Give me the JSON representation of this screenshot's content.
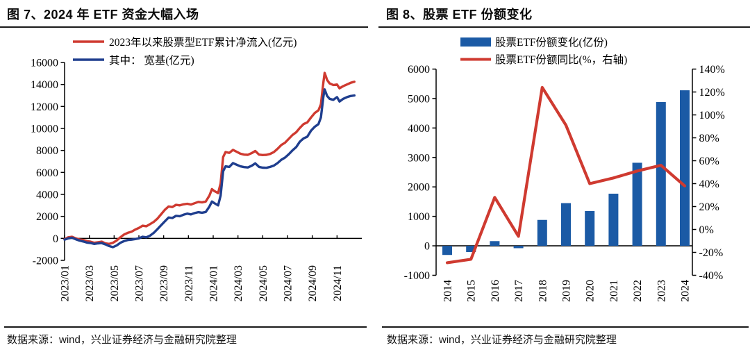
{
  "colors": {
    "red_line": "#cf3a30",
    "navy_line": "#1f3e8e",
    "bar_blue": "#1b5aa5",
    "axis_black": "#000000",
    "rule_dark": "#1a1a1a"
  },
  "left_panel": {
    "title": "图 7、2024 年 ETF 资金大幅入场",
    "source": "数据来源：wind，兴业证券经济与金融研究院整理"
  },
  "right_panel": {
    "title": "图 8、股票 ETF 份额变化",
    "source": "数据来源：wind，兴业证券经济与金融研究院整理"
  },
  "chart_data": [
    {
      "id": "fig7",
      "type": "line",
      "title": "图 7、2024 年 ETF 资金大幅入场",
      "xlabel": "",
      "ylabel": "",
      "unit": "亿元",
      "ylim": [
        -2000,
        16000
      ],
      "ytick_step": 2000,
      "yticks": [
        -2000,
        0,
        2000,
        4000,
        6000,
        8000,
        10000,
        12000,
        14000,
        16000
      ],
      "x_month_span": 24,
      "xtick_labels": [
        "2023/01",
        "2023/03",
        "2023/05",
        "2023/07",
        "2023/09",
        "2023/11",
        "2024/01",
        "2024/03",
        "2024/05",
        "2024/07",
        "2024/09",
        "2024/11"
      ],
      "grid": false,
      "legend_position": "top-inside",
      "series": [
        {
          "name": "2023年以来股票型ETF累计净流入(亿元)",
          "color": "#cf3a30",
          "points": [
            [
              0,
              -80
            ],
            [
              0.3,
              100
            ],
            [
              0.6,
              150
            ],
            [
              0.9,
              0
            ],
            [
              1.2,
              -100
            ],
            [
              1.5,
              -150
            ],
            [
              1.8,
              -250
            ],
            [
              2.1,
              -300
            ],
            [
              2.4,
              -400
            ],
            [
              2.7,
              -350
            ],
            [
              3,
              -300
            ],
            [
              3.3,
              -450
            ],
            [
              3.6,
              -500
            ],
            [
              3.9,
              -400
            ],
            [
              4.2,
              -200
            ],
            [
              4.5,
              100
            ],
            [
              4.8,
              350
            ],
            [
              5.1,
              500
            ],
            [
              5.4,
              600
            ],
            [
              5.7,
              800
            ],
            [
              6,
              950
            ],
            [
              6.3,
              1150
            ],
            [
              6.6,
              1100
            ],
            [
              6.9,
              1300
            ],
            [
              7.2,
              1500
            ],
            [
              7.5,
              1800
            ],
            [
              7.8,
              2200
            ],
            [
              8.1,
              2600
            ],
            [
              8.4,
              2900
            ],
            [
              8.7,
              2850
            ],
            [
              9,
              3050
            ],
            [
              9.3,
              3000
            ],
            [
              9.6,
              3100
            ],
            [
              9.9,
              3150
            ],
            [
              10.2,
              3080
            ],
            [
              10.5,
              3200
            ],
            [
              10.8,
              3320
            ],
            [
              11.1,
              3280
            ],
            [
              11.4,
              3350
            ],
            [
              11.7,
              3900
            ],
            [
              11.9,
              4480
            ],
            [
              12.1,
              4300
            ],
            [
              12.4,
              4120
            ],
            [
              12.6,
              5000
            ],
            [
              12.8,
              7400
            ],
            [
              13,
              7850
            ],
            [
              13.3,
              7780
            ],
            [
              13.6,
              8050
            ],
            [
              13.9,
              7880
            ],
            [
              14.2,
              7700
            ],
            [
              14.5,
              7620
            ],
            [
              14.8,
              7600
            ],
            [
              15.1,
              7750
            ],
            [
              15.4,
              7950
            ],
            [
              15.7,
              7620
            ],
            [
              16,
              7580
            ],
            [
              16.3,
              7600
            ],
            [
              16.6,
              7680
            ],
            [
              16.9,
              7850
            ],
            [
              17.2,
              8150
            ],
            [
              17.5,
              8500
            ],
            [
              17.8,
              8700
            ],
            [
              18.1,
              9050
            ],
            [
              18.4,
              9400
            ],
            [
              18.7,
              9650
            ],
            [
              19,
              10050
            ],
            [
              19.3,
              10400
            ],
            [
              19.6,
              10550
            ],
            [
              19.9,
              11000
            ],
            [
              20.2,
              11400
            ],
            [
              20.5,
              11650
            ],
            [
              20.7,
              12200
            ],
            [
              20.9,
              14200
            ],
            [
              21,
              15050
            ],
            [
              21.2,
              14400
            ],
            [
              21.4,
              14100
            ],
            [
              21.7,
              13950
            ],
            [
              22,
              14000
            ],
            [
              22.2,
              13650
            ],
            [
              22.5,
              13850
            ],
            [
              22.8,
              14000
            ],
            [
              23.1,
              14150
            ],
            [
              23.4,
              14250
            ]
          ]
        },
        {
          "name": "其中： 宽基(亿元)",
          "color": "#1f3e8e",
          "points": [
            [
              0,
              -120
            ],
            [
              0.3,
              0
            ],
            [
              0.6,
              60
            ],
            [
              0.9,
              -80
            ],
            [
              1.2,
              -200
            ],
            [
              1.5,
              -280
            ],
            [
              1.8,
              -380
            ],
            [
              2.1,
              -420
            ],
            [
              2.4,
              -500
            ],
            [
              2.7,
              -450
            ],
            [
              3,
              -430
            ],
            [
              3.3,
              -550
            ],
            [
              3.6,
              -700
            ],
            [
              3.9,
              -800
            ],
            [
              4.2,
              -650
            ],
            [
              4.5,
              -400
            ],
            [
              4.8,
              -250
            ],
            [
              5.1,
              -150
            ],
            [
              5.4,
              -120
            ],
            [
              5.7,
              -60
            ],
            [
              6,
              0
            ],
            [
              6.3,
              150
            ],
            [
              6.6,
              100
            ],
            [
              6.9,
              250
            ],
            [
              7.2,
              500
            ],
            [
              7.5,
              850
            ],
            [
              7.8,
              1200
            ],
            [
              8.1,
              1550
            ],
            [
              8.4,
              1900
            ],
            [
              8.7,
              1850
            ],
            [
              9,
              2050
            ],
            [
              9.3,
              2020
            ],
            [
              9.6,
              2150
            ],
            [
              9.9,
              2250
            ],
            [
              10.2,
              2180
            ],
            [
              10.5,
              2300
            ],
            [
              10.8,
              2380
            ],
            [
              11.1,
              2330
            ],
            [
              11.4,
              2400
            ],
            [
              11.7,
              2900
            ],
            [
              11.9,
              3350
            ],
            [
              12.1,
              3200
            ],
            [
              12.4,
              3000
            ],
            [
              12.6,
              3900
            ],
            [
              12.8,
              6100
            ],
            [
              13,
              6550
            ],
            [
              13.3,
              6500
            ],
            [
              13.6,
              6850
            ],
            [
              13.9,
              6700
            ],
            [
              14.2,
              6550
            ],
            [
              14.5,
              6480
            ],
            [
              14.8,
              6450
            ],
            [
              15.1,
              6600
            ],
            [
              15.4,
              6820
            ],
            [
              15.7,
              6500
            ],
            [
              16,
              6430
            ],
            [
              16.3,
              6420
            ],
            [
              16.6,
              6500
            ],
            [
              16.9,
              6620
            ],
            [
              17.2,
              6850
            ],
            [
              17.5,
              7150
            ],
            [
              17.8,
              7350
            ],
            [
              18.1,
              7650
            ],
            [
              18.4,
              8000
            ],
            [
              18.7,
              8300
            ],
            [
              19,
              8800
            ],
            [
              19.3,
              9100
            ],
            [
              19.6,
              9250
            ],
            [
              19.9,
              9800
            ],
            [
              20.2,
              10150
            ],
            [
              20.5,
              10400
            ],
            [
              20.7,
              11000
            ],
            [
              20.9,
              12900
            ],
            [
              21,
              13550
            ],
            [
              21.2,
              12950
            ],
            [
              21.4,
              12700
            ],
            [
              21.7,
              12600
            ],
            [
              22,
              12850
            ],
            [
              22.2,
              12450
            ],
            [
              22.5,
              12700
            ],
            [
              22.8,
              12850
            ],
            [
              23.1,
              12950
            ],
            [
              23.4,
              13000
            ]
          ]
        }
      ]
    },
    {
      "id": "fig8",
      "type": "bar+line",
      "title": "图 8、股票 ETF 份额变化",
      "categories": [
        "2014",
        "2015",
        "2016",
        "2017",
        "2018",
        "2019",
        "2020",
        "2021",
        "2022",
        "2023",
        "2024"
      ],
      "bar_series": {
        "name": "股票ETF份额变化(亿份)",
        "color": "#1b5aa5",
        "axis": "left",
        "values": [
          -310,
          -210,
          160,
          -80,
          880,
          1450,
          1180,
          1770,
          2820,
          4880,
          5280
        ]
      },
      "line_series": {
        "name": "股票ETF份额同比(%，右轴)",
        "color": "#cf3a30",
        "axis": "right",
        "values": [
          -29,
          -26,
          28,
          -6,
          124,
          91,
          40,
          45,
          51,
          56,
          38
        ]
      },
      "left_ylim": [
        -1000,
        6000
      ],
      "left_ytick_step": 1000,
      "left_yticks": [
        -1000,
        0,
        1000,
        2000,
        3000,
        4000,
        5000,
        6000
      ],
      "right_ylim": [
        -40,
        140
      ],
      "right_ytick_step": 20,
      "right_tick_suffix": "%",
      "right_ytick_labels": [
        "-40%",
        "-20%",
        "0%",
        "20%",
        "40%",
        "60%",
        "80%",
        "100%",
        "120%",
        "140%"
      ],
      "grid": false,
      "legend_position": "top-inside"
    }
  ]
}
